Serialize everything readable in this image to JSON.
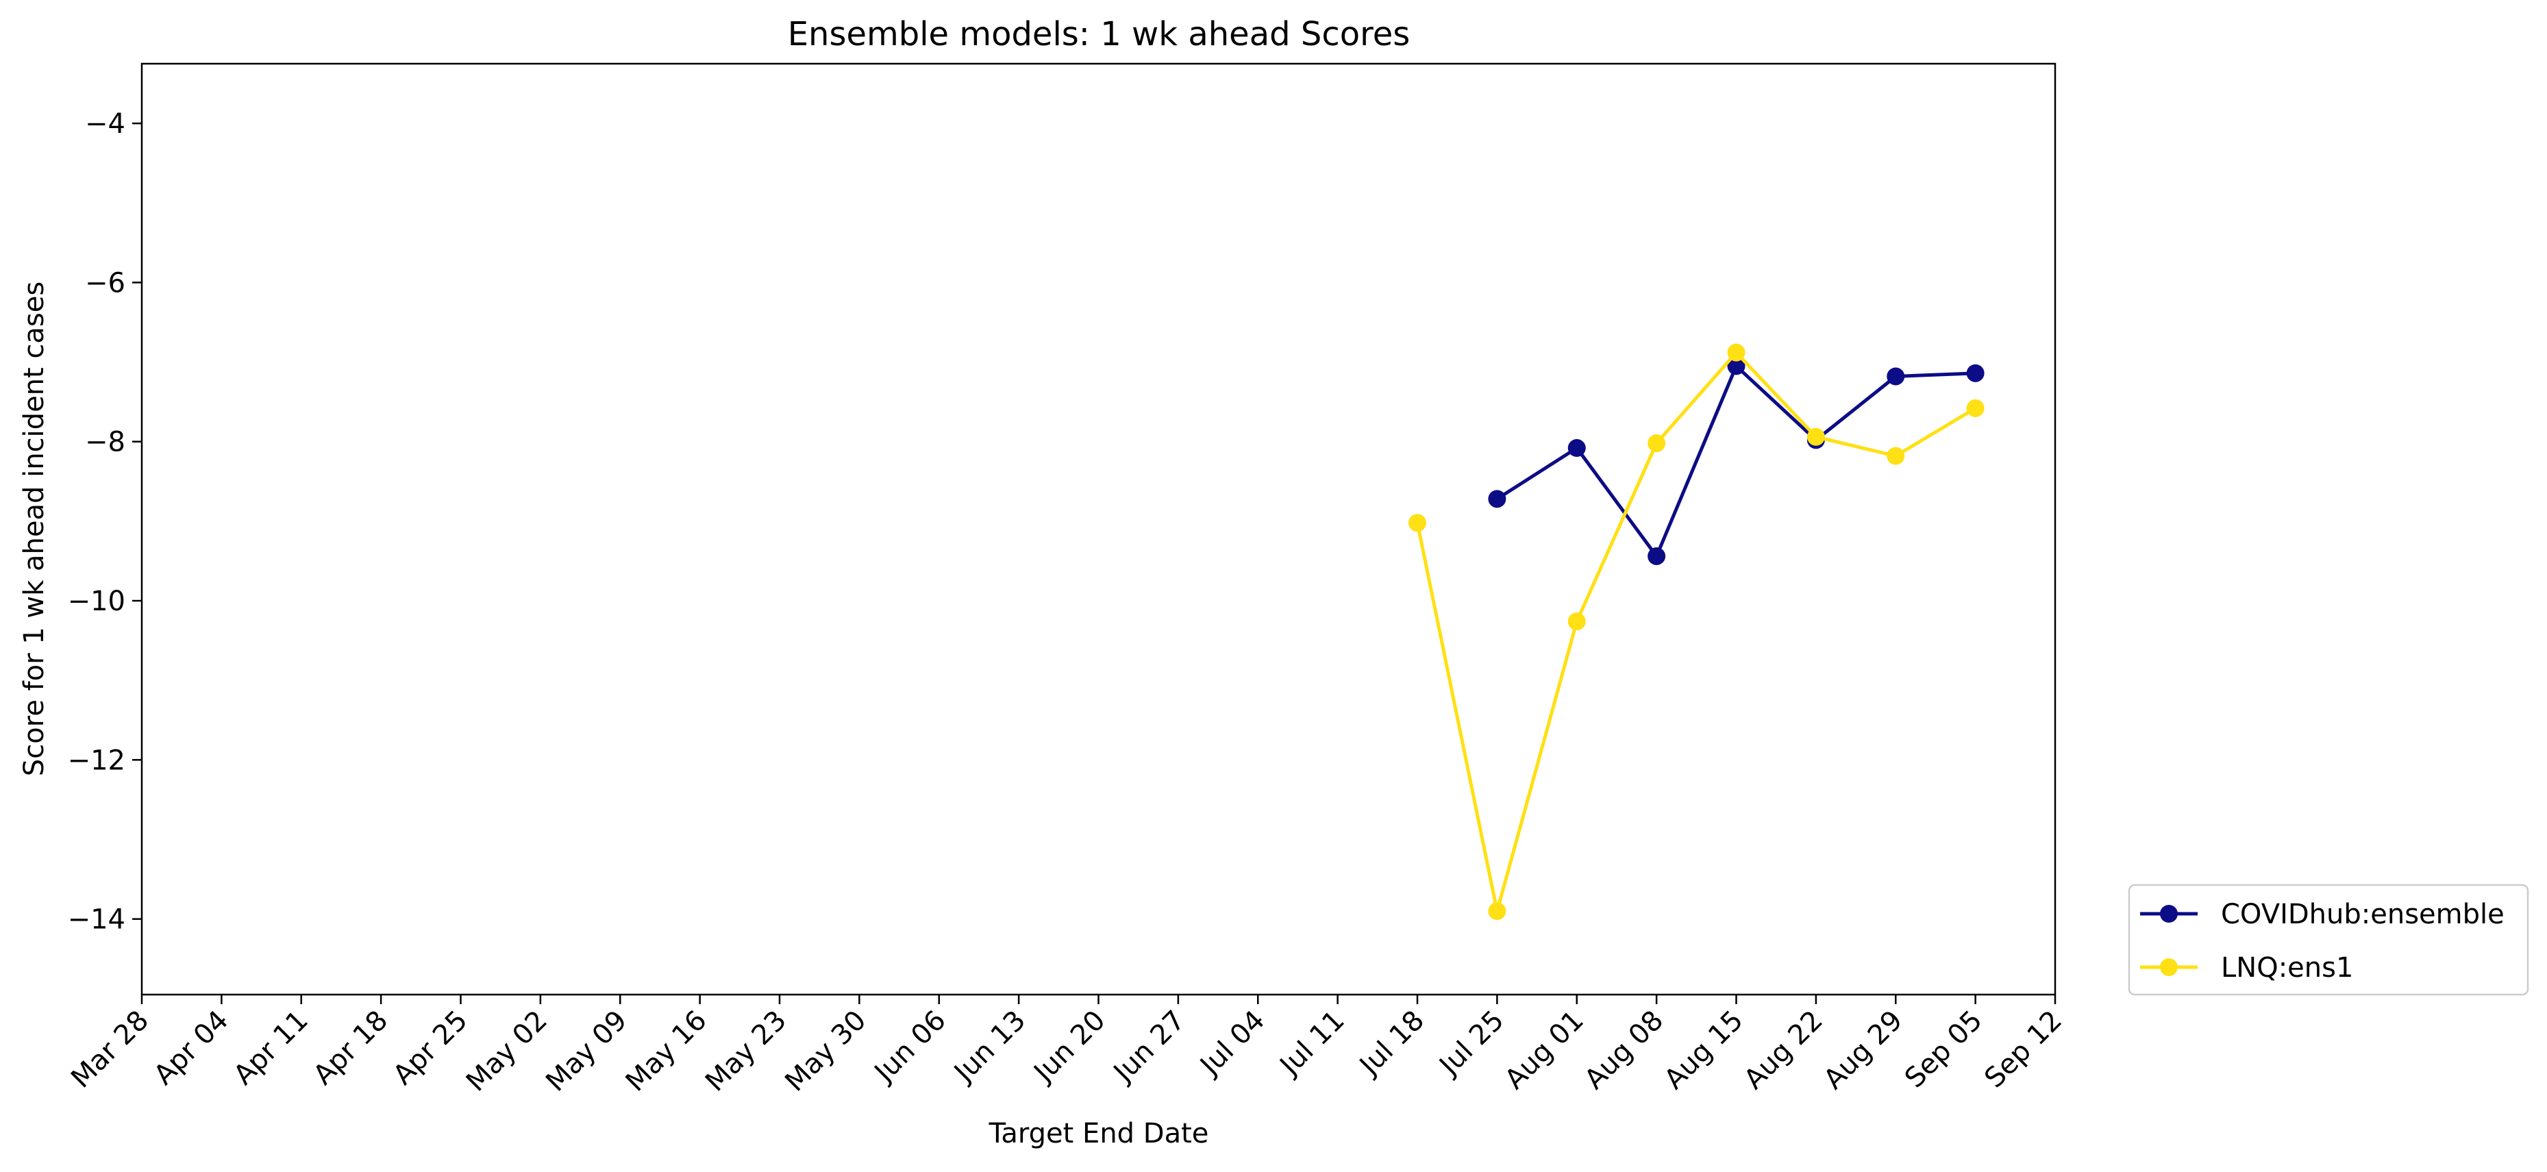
{
  "chart_data": {
    "type": "line",
    "title": "Ensemble models: 1 wk ahead Scores",
    "xlabel": "Target End Date",
    "ylabel": "Score for 1 wk ahead incident cases",
    "x_tick_labels": [
      "Mar 28",
      "Apr 04",
      "Apr 11",
      "Apr 18",
      "Apr 25",
      "May 02",
      "May 09",
      "May 16",
      "May 23",
      "May 30",
      "Jun 06",
      "Jun 13",
      "Jun 20",
      "Jun 27",
      "Jul 04",
      "Jul 11",
      "Jul 18",
      "Jul 25",
      "Aug 01",
      "Aug 08",
      "Aug 15",
      "Aug 22",
      "Aug 29",
      "Sep 05",
      "Sep 12"
    ],
    "y_ticks": [
      -4,
      -6,
      -8,
      -10,
      -12,
      -14
    ],
    "y_tick_labels": [
      "−4",
      "−6",
      "−8",
      "−10",
      "−12",
      "−14"
    ],
    "ylim": [
      -14.95,
      -3.25
    ],
    "xlim": [
      "Mar 28",
      "Sep 12"
    ],
    "grid": false,
    "legend_position": "outside-bottom-right",
    "series": [
      {
        "name": "COVIDhub:ensemble",
        "color": "#0c0c86",
        "x": [
          "Jul 25",
          "Aug 01",
          "Aug 08",
          "Aug 15",
          "Aug 22",
          "Aug 29",
          "Sep 05"
        ],
        "y": [
          -8.72,
          -8.08,
          -9.44,
          -7.05,
          -7.98,
          -7.18,
          -7.14
        ]
      },
      {
        "name": "LNQ:ens1",
        "color": "#ffe014",
        "x": [
          "Jul 18",
          "Jul 25",
          "Aug 01",
          "Aug 08",
          "Aug 15",
          "Aug 22",
          "Aug 29",
          "Sep 05"
        ],
        "y": [
          -9.02,
          -13.9,
          -10.26,
          -8.02,
          -6.88,
          -7.94,
          -8.18,
          -7.58
        ]
      }
    ]
  }
}
